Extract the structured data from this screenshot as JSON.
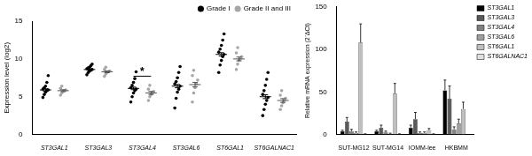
{
  "chart_data": [
    {
      "type": "scatter",
      "y_label": "Expression level (log2)",
      "categories": [
        "ST3GAL1",
        "ST3GAL3",
        "ST3GAL4",
        "ST3GAL6",
        "ST6GAL1",
        "ST6GALNAC1"
      ],
      "series": [
        {
          "name": "Grade I",
          "color": "#000000",
          "marker": "circle",
          "values": [
            5.9,
            8.6,
            6.1,
            6.4,
            10.6,
            5.0
          ],
          "errors": [
            0.15,
            0.08,
            0.17,
            0.22,
            0.22,
            0.25
          ],
          "points": [
            [
              4.9,
              5.3,
              5.6,
              5.8,
              5.9,
              6.0,
              6.2,
              6.4,
              6.9,
              7.8
            ],
            [
              7.9,
              8.2,
              8.4,
              8.5,
              8.6,
              8.7,
              8.8,
              8.9,
              9.1,
              9.3
            ],
            [
              4.3,
              5.0,
              5.5,
              5.8,
              6.0,
              6.2,
              6.5,
              6.9,
              7.4,
              8.3
            ],
            [
              3.5,
              4.8,
              5.6,
              6.0,
              6.4,
              6.7,
              7.0,
              7.5,
              8.2,
              9.0
            ],
            [
              8.2,
              9.2,
              9.8,
              10.3,
              10.6,
              10.9,
              11.3,
              11.8,
              12.5,
              13.3
            ],
            [
              2.5,
              3.3,
              4.0,
              4.5,
              4.9,
              5.3,
              5.8,
              6.5,
              7.3,
              8.2
            ]
          ]
        },
        {
          "name": "Grade II and III",
          "color": "#a6a6a6",
          "marker": "circle",
          "values": [
            5.8,
            8.3,
            5.5,
            6.6,
            10.0,
            4.5
          ],
          "errors": [
            0.12,
            0.12,
            0.2,
            0.3,
            0.25,
            0.25
          ],
          "points": [
            [
              5.2,
              5.5,
              5.7,
              5.8,
              5.9,
              6.1,
              6.4
            ],
            [
              7.7,
              8.0,
              8.2,
              8.3,
              8.4,
              8.6,
              8.9
            ],
            [
              4.5,
              5.0,
              5.3,
              5.5,
              5.7,
              6.0,
              6.5
            ],
            [
              4.3,
              5.5,
              6.2,
              6.7,
              7.2,
              7.8,
              8.5
            ],
            [
              8.6,
              9.3,
              9.8,
              10.0,
              10.3,
              10.8,
              11.5
            ],
            [
              3.3,
              3.8,
              4.2,
              4.5,
              4.8,
              5.2,
              5.8
            ]
          ]
        }
      ],
      "annotations": [
        {
          "text": "*",
          "category": "ST3GAL4",
          "y": 7.6
        }
      ],
      "ylim": [
        0,
        15
      ],
      "yticks": [
        0,
        5,
        10,
        15
      ],
      "grid": false,
      "legend": "top-right"
    },
    {
      "type": "bar",
      "y_label": "Relative mRNA expression (2⁻ΔCt)",
      "categories": [
        "SUT-MG12",
        "SUT-MG14",
        "IOMM-lee",
        "HKBMM"
      ],
      "series": [
        {
          "name": "ST3GAL1",
          "color": "#000000",
          "values": [
            4,
            4,
            8,
            52
          ],
          "errors": [
            1,
            1,
            3,
            12
          ]
        },
        {
          "name": "ST3GAL3",
          "color": "#595959",
          "values": [
            15,
            8,
            18,
            42
          ],
          "errors": [
            5,
            3,
            8,
            15
          ]
        },
        {
          "name": "ST3GAL4",
          "color": "#808080",
          "values": [
            4,
            3,
            2,
            6
          ],
          "errors": [
            2,
            1,
            1,
            3
          ]
        },
        {
          "name": "ST3GAL6",
          "color": "#a0a0a0",
          "values": [
            2,
            1,
            2,
            13
          ],
          "errors": [
            1,
            0.5,
            1,
            5
          ]
        },
        {
          "name": "ST6GAL1",
          "color": "#c0c0c0",
          "values": [
            108,
            48,
            5,
            30
          ],
          "errors": [
            22,
            12,
            2,
            8
          ]
        },
        {
          "name": "ST6GALNAC1",
          "color": "#e0e0e0",
          "values": [
            0.5,
            0.5,
            0.5,
            0
          ],
          "errors": [
            0.3,
            0.3,
            0.3,
            0
          ]
        }
      ],
      "ylim": [
        0,
        150
      ],
      "yticks": [
        0,
        50,
        100,
        150
      ],
      "grid": false,
      "legend": "top-right"
    }
  ]
}
